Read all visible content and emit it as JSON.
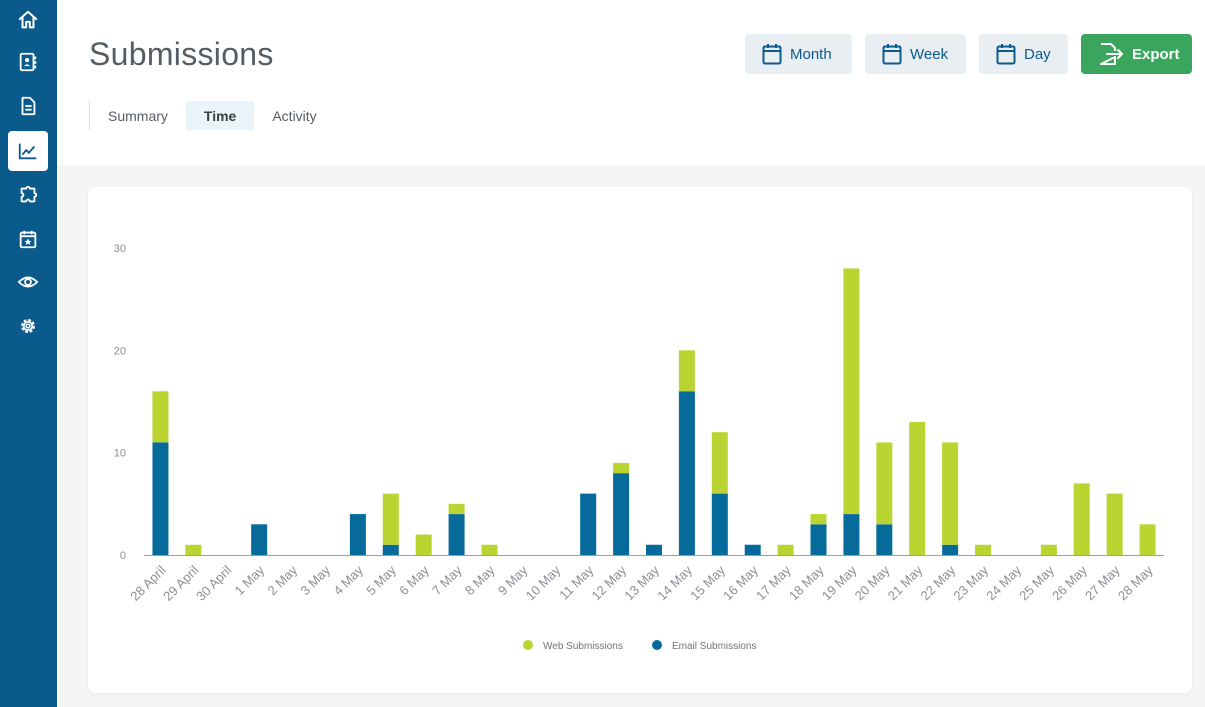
{
  "page": {
    "title": "Submissions"
  },
  "tabs": [
    {
      "label": "Summary",
      "active": false
    },
    {
      "label": "Time",
      "active": true
    },
    {
      "label": "Activity",
      "active": false
    }
  ],
  "buttons": {
    "month": "Month",
    "week": "Week",
    "day": "Day",
    "export": "Export"
  },
  "sidebar": {
    "items": [
      {
        "icon": "home-icon",
        "active": false
      },
      {
        "icon": "contacts-book-icon",
        "active": false
      },
      {
        "icon": "document-icon",
        "active": false
      },
      {
        "icon": "line-chart-icon",
        "active": true
      },
      {
        "icon": "puzzle-icon",
        "active": false
      },
      {
        "icon": "calendar-star-icon",
        "active": false
      },
      {
        "icon": "eye-icon",
        "active": false
      },
      {
        "icon": "gear-icon",
        "active": false
      }
    ]
  },
  "colors": {
    "sidebar": "#0b5a8c",
    "web": "#bad531",
    "email": "#066a9a",
    "export": "#3aa55d"
  },
  "chart_data": {
    "type": "bar",
    "stacked": true,
    "ylim": [
      0,
      30
    ],
    "yticks": [
      0,
      10,
      20,
      30
    ],
    "categories": [
      "28 April",
      "29 April",
      "30 April",
      "1 May",
      "2 May",
      "3 May",
      "4 May",
      "5 May",
      "6 May",
      "7 May",
      "8 May",
      "9 May",
      "10 May",
      "11 May",
      "12 May",
      "13 May",
      "14 May",
      "15 May",
      "16 May",
      "17 May",
      "18 May",
      "19 May",
      "20 May",
      "21 May",
      "22 May",
      "23 May",
      "24 May",
      "25 May",
      "26 May",
      "27 May",
      "28 May"
    ],
    "series": [
      {
        "name": "Email Submissions",
        "values": [
          11,
          0,
          0,
          3,
          0,
          0,
          4,
          1,
          0,
          4,
          0,
          0,
          0,
          6,
          8,
          1,
          16,
          6,
          1,
          0,
          3,
          4,
          3,
          0,
          1,
          0,
          0,
          0,
          0,
          0,
          0
        ]
      },
      {
        "name": "Web Submissions",
        "values": [
          5,
          1,
          0,
          0,
          0,
          0,
          0,
          5,
          2,
          1,
          1,
          0,
          0,
          0,
          1,
          0,
          4,
          6,
          0,
          1,
          1,
          24,
          8,
          13,
          10,
          1,
          0,
          1,
          7,
          6,
          3
        ]
      }
    ],
    "legend": [
      "Web Submissions",
      "Email Submissions"
    ],
    "legend_position": "bottom",
    "grid": false
  }
}
